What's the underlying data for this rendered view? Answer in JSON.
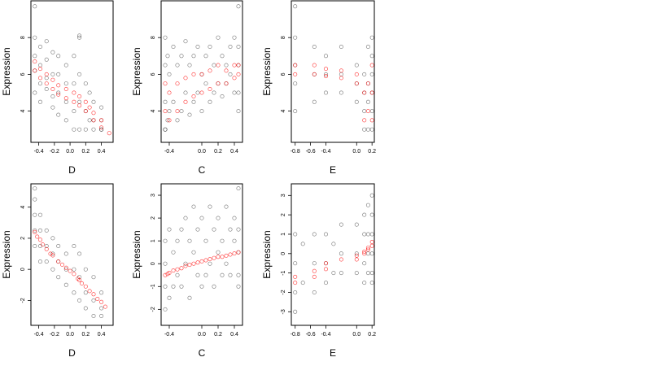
{
  "chart_data": [
    {
      "type": "scatter",
      "panel": "top-left",
      "xlabel": "D",
      "ylabel": "Expression",
      "xlim": [
        -0.5,
        0.55
      ],
      "ylim": [
        2.3,
        10
      ],
      "xticks": [
        -0.4,
        -0.2,
        0.0,
        0.2,
        0.4
      ],
      "xtick_labels": [
        "-0.4",
        "-0.2",
        "0.0",
        "0.2",
        "0.4"
      ],
      "yticks": [
        4,
        6,
        8
      ],
      "ytick_labels": [
        "4",
        "6",
        "8"
      ],
      "series": [
        {
          "role": "observed",
          "color": "#000000",
          "x": [
            -0.45,
            -0.45,
            -0.45,
            -0.45,
            -0.38,
            -0.38,
            -0.38,
            -0.38,
            -0.3,
            -0.3,
            -0.3,
            -0.3,
            -0.22,
            -0.22,
            -0.22,
            -0.22,
            -0.15,
            -0.15,
            -0.15,
            -0.15,
            -0.05,
            -0.05,
            -0.05,
            -0.05,
            0.05,
            0.05,
            0.05,
            0.05,
            0.12,
            0.12,
            0.12,
            0.12,
            0.2,
            0.2,
            0.2,
            0.25,
            0.25,
            0.3,
            0.3,
            0.3,
            0.4,
            0.4,
            0.4,
            0.4,
            -0.45,
            0.12
          ],
          "y": [
            8.0,
            7.0,
            6.2,
            5.0,
            7.5,
            6.5,
            5.5,
            4.5,
            7.8,
            6.8,
            5.8,
            5.2,
            7.2,
            6.0,
            4.8,
            4.2,
            7.0,
            6.0,
            5.0,
            3.8,
            6.5,
            5.5,
            4.5,
            3.5,
            7.0,
            5.5,
            4.0,
            3.0,
            8.0,
            6.0,
            4.5,
            3.0,
            5.5,
            4.0,
            3.0,
            5.0,
            3.5,
            4.5,
            3.5,
            3.0,
            4.2,
            3.5,
            3.0,
            3.0,
            9.7,
            8.1
          ]
        },
        {
          "role": "fitted",
          "color": "#ff0000",
          "x": [
            -0.45,
            -0.45,
            -0.38,
            -0.38,
            -0.3,
            -0.3,
            -0.22,
            -0.22,
            -0.15,
            -0.15,
            -0.05,
            -0.05,
            0.05,
            0.05,
            0.12,
            0.12,
            0.2,
            0.2,
            0.25,
            0.3,
            0.3,
            0.4,
            0.4,
            0.5
          ],
          "y": [
            6.7,
            6.2,
            6.3,
            5.8,
            6.0,
            5.5,
            5.7,
            5.2,
            5.4,
            4.9,
            5.2,
            4.7,
            5.0,
            4.5,
            4.8,
            4.3,
            4.5,
            4.0,
            4.2,
            3.9,
            3.5,
            3.5,
            3.1,
            2.8
          ]
        }
      ]
    },
    {
      "type": "scatter",
      "panel": "top-middle",
      "xlabel": "C",
      "ylabel": "Expression",
      "xlim": [
        -0.5,
        0.5
      ],
      "ylim": [
        2.3,
        10
      ],
      "xticks": [
        -0.4,
        0.0,
        0.2,
        0.4
      ],
      "xtick_labels": [
        "-0.4",
        "0.0",
        "0.2",
        "0.4"
      ],
      "yticks": [
        4,
        6,
        8
      ],
      "ytick_labels": [
        "4",
        "6",
        "8"
      ],
      "series": [
        {
          "role": "observed",
          "color": "#000000",
          "x": [
            -0.45,
            -0.45,
            -0.45,
            -0.45,
            -0.42,
            -0.42,
            -0.4,
            -0.4,
            -0.35,
            -0.35,
            -0.3,
            -0.3,
            -0.25,
            -0.25,
            -0.2,
            -0.2,
            -0.15,
            -0.15,
            -0.1,
            -0.1,
            -0.05,
            -0.05,
            0.0,
            0.0,
            0.05,
            0.05,
            0.1,
            0.1,
            0.15,
            0.15,
            0.2,
            0.2,
            0.25,
            0.25,
            0.3,
            0.3,
            0.35,
            0.35,
            0.4,
            0.4,
            0.45,
            0.45,
            0.45,
            0.45,
            -0.45,
            0.45
          ],
          "y": [
            8.0,
            6.5,
            4.5,
            3.0,
            7.0,
            3.5,
            6.0,
            4.0,
            7.5,
            4.5,
            6.5,
            3.5,
            7.0,
            4.0,
            7.8,
            5.0,
            6.5,
            3.8,
            7.0,
            4.5,
            7.5,
            5.0,
            6.0,
            4.0,
            7.0,
            5.5,
            7.5,
            4.5,
            6.5,
            5.0,
            8.0,
            5.5,
            7.0,
            4.8,
            6.5,
            5.5,
            7.5,
            6.0,
            8.0,
            5.0,
            7.5,
            6.5,
            5.0,
            4.0,
            3.0,
            9.7
          ]
        },
        {
          "role": "fitted",
          "color": "#ff0000",
          "x": [
            -0.45,
            -0.45,
            -0.4,
            -0.4,
            -0.3,
            -0.3,
            -0.2,
            -0.2,
            -0.1,
            -0.1,
            0.0,
            0.0,
            0.1,
            0.1,
            0.2,
            0.2,
            0.3,
            0.3,
            0.4,
            0.4,
            0.45,
            0.45
          ],
          "y": [
            5.5,
            4.0,
            5.0,
            3.5,
            5.5,
            4.0,
            5.8,
            4.5,
            6.0,
            4.8,
            6.0,
            5.0,
            6.2,
            5.2,
            6.5,
            5.5,
            6.2,
            5.5,
            6.5,
            5.8,
            6.5,
            6.0
          ]
        }
      ]
    },
    {
      "type": "scatter",
      "panel": "top-right",
      "xlabel": "E",
      "ylabel": "Expression",
      "xlim": [
        -0.85,
        0.23
      ],
      "ylim": [
        2.3,
        10
      ],
      "xticks": [
        -0.8,
        -0.6,
        -0.4,
        0.0,
        0.2
      ],
      "xtick_labels": [
        "-0.8",
        "-0.6",
        "-0.4",
        "0.0",
        "0.2"
      ],
      "yticks": [
        4,
        6,
        8
      ],
      "ytick_labels": [
        "4",
        "6",
        "8"
      ],
      "series": [
        {
          "role": "observed",
          "color": "#000000",
          "x": [
            -0.8,
            -0.8,
            -0.8,
            -0.8,
            -0.55,
            -0.55,
            -0.55,
            -0.4,
            -0.4,
            -0.4,
            -0.2,
            -0.2,
            -0.2,
            0.0,
            0.0,
            0.0,
            0.1,
            0.1,
            0.1,
            0.1,
            0.15,
            0.15,
            0.15,
            0.15,
            0.2,
            0.2,
            0.2,
            0.2,
            0.2,
            0.2,
            -0.8
          ],
          "y": [
            8.0,
            6.5,
            5.5,
            4.0,
            7.5,
            6.0,
            4.5,
            7.0,
            6.0,
            5.0,
            7.5,
            6.0,
            5.0,
            6.5,
            5.5,
            4.5,
            6.0,
            5.0,
            4.0,
            3.0,
            7.5,
            5.5,
            4.5,
            3.0,
            8.0,
            7.0,
            6.0,
            5.0,
            4.0,
            3.0,
            9.7
          ]
        },
        {
          "role": "fitted",
          "color": "#ff0000",
          "x": [
            -0.8,
            -0.8,
            -0.55,
            -0.55,
            -0.4,
            -0.4,
            -0.2,
            -0.2,
            0.0,
            0.0,
            0.1,
            0.1,
            0.15,
            0.15,
            0.2,
            0.2,
            0.2
          ],
          "y": [
            6.5,
            6.0,
            6.5,
            6.0,
            6.3,
            5.9,
            6.2,
            5.8,
            6.0,
            5.5,
            5.0,
            3.5,
            5.5,
            4.0,
            6.5,
            5.0,
            3.5
          ]
        }
      ]
    },
    {
      "type": "scatter",
      "panel": "bottom-left",
      "xlabel": "D",
      "ylabel": "Expression",
      "xlim": [
        -0.5,
        0.55
      ],
      "ylim": [
        -3.6,
        5.5
      ],
      "xticks": [
        -0.4,
        -0.2,
        0.0,
        0.2,
        0.4
      ],
      "xtick_labels": [
        "-0.4",
        "-0.2",
        "0.0",
        "0.2",
        "0.4"
      ],
      "yticks": [
        -2,
        0,
        2,
        4
      ],
      "ytick_labels": [
        "-2",
        "0",
        "2",
        "4"
      ],
      "series": [
        {
          "role": "observed",
          "color": "#000000",
          "x": [
            -0.45,
            -0.45,
            -0.45,
            -0.45,
            -0.38,
            -0.38,
            -0.38,
            -0.38,
            -0.3,
            -0.3,
            -0.3,
            -0.22,
            -0.22,
            -0.22,
            -0.15,
            -0.15,
            -0.15,
            -0.05,
            -0.05,
            -0.05,
            0.05,
            0.05,
            0.05,
            0.12,
            0.12,
            0.12,
            0.2,
            0.2,
            0.2,
            0.3,
            0.3,
            0.3,
            0.4,
            0.4,
            0.4,
            -0.45
          ],
          "y": [
            4.5,
            3.5,
            2.5,
            1.5,
            3.5,
            2.5,
            1.5,
            0.5,
            2.5,
            1.5,
            0.5,
            2.0,
            1.0,
            0.0,
            1.5,
            0.5,
            -0.5,
            1.0,
            0.0,
            -1.0,
            1.5,
            0.0,
            -1.5,
            1.0,
            -0.5,
            -2.0,
            0.0,
            -1.5,
            -2.5,
            -0.5,
            -2.0,
            -3.0,
            -1.5,
            -2.5,
            -3.0,
            5.2
          ]
        },
        {
          "role": "fitted",
          "color": "#ff0000",
          "x": [
            -0.45,
            -0.42,
            -0.38,
            -0.35,
            -0.3,
            -0.25,
            -0.22,
            -0.15,
            -0.1,
            -0.05,
            0.0,
            0.05,
            0.1,
            0.12,
            0.15,
            0.2,
            0.25,
            0.3,
            0.35,
            0.4,
            0.45
          ],
          "y": [
            2.4,
            2.1,
            1.9,
            1.6,
            1.3,
            1.0,
            0.9,
            0.5,
            0.3,
            0.1,
            -0.1,
            -0.3,
            -0.6,
            -0.7,
            -0.9,
            -1.1,
            -1.4,
            -1.6,
            -1.9,
            -2.1,
            -2.4
          ]
        }
      ]
    },
    {
      "type": "scatter",
      "panel": "bottom-middle",
      "xlabel": "C",
      "ylabel": "Expression",
      "xlim": [
        -0.5,
        0.5
      ],
      "ylim": [
        -2.7,
        3.5
      ],
      "xticks": [
        -0.4,
        0.0,
        0.2,
        0.4
      ],
      "xtick_labels": [
        "-0.4",
        "0.0",
        "0.2",
        "0.4"
      ],
      "yticks": [
        -2,
        -1,
        0,
        1,
        2,
        3
      ],
      "ytick_labels": [
        "-2",
        "-1",
        "0",
        "1",
        "2",
        "3"
      ],
      "series": [
        {
          "role": "observed",
          "color": "#000000",
          "x": [
            -0.45,
            -0.45,
            -0.45,
            -0.45,
            -0.4,
            -0.4,
            -0.35,
            -0.35,
            -0.3,
            -0.3,
            -0.25,
            -0.25,
            -0.2,
            -0.2,
            -0.15,
            -0.15,
            -0.1,
            -0.1,
            -0.05,
            -0.05,
            0.0,
            0.0,
            0.05,
            0.05,
            0.1,
            0.1,
            0.15,
            0.15,
            0.2,
            0.2,
            0.25,
            0.25,
            0.3,
            0.3,
            0.35,
            0.35,
            0.4,
            0.4,
            0.45,
            0.45,
            0.45,
            0.45,
            0.45
          ],
          "y": [
            1.0,
            0.0,
            -1.0,
            -2.0,
            1.5,
            -1.5,
            0.5,
            -1.0,
            1.0,
            -0.5,
            1.5,
            -1.0,
            2.0,
            0.0,
            1.0,
            -1.5,
            2.5,
            0.5,
            1.5,
            -0.5,
            2.0,
            -1.0,
            1.0,
            -0.5,
            2.5,
            0.0,
            1.5,
            -1.0,
            2.0,
            0.5,
            1.0,
            -0.5,
            2.5,
            0.0,
            1.5,
            -0.5,
            2.0,
            1.0,
            1.5,
            0.5,
            -0.5,
            -1.0,
            3.3
          ]
        },
        {
          "role": "fitted",
          "color": "#ff0000",
          "x": [
            -0.45,
            -0.42,
            -0.4,
            -0.35,
            -0.3,
            -0.25,
            -0.2,
            -0.15,
            -0.1,
            -0.05,
            0.0,
            0.05,
            0.1,
            0.15,
            0.2,
            0.25,
            0.3,
            0.35,
            0.4,
            0.45
          ],
          "y": [
            -0.5,
            -0.45,
            -0.4,
            -0.3,
            -0.25,
            -0.2,
            -0.1,
            -0.05,
            0.0,
            0.05,
            0.1,
            0.15,
            0.2,
            0.25,
            0.3,
            0.3,
            0.35,
            0.4,
            0.45,
            0.5
          ]
        }
      ]
    },
    {
      "type": "scatter",
      "panel": "bottom-right",
      "xlabel": "E",
      "ylabel": "Expression",
      "xlim": [
        -0.85,
        0.23
      ],
      "ylim": [
        -3.7,
        3.6
      ],
      "xticks": [
        -0.8,
        -0.6,
        -0.4,
        0.0,
        0.2
      ],
      "xtick_labels": [
        "-0.8",
        "-0.6",
        "-0.4",
        "0.0",
        "0.2"
      ],
      "yticks": [
        -3,
        -2,
        -1,
        0,
        1,
        2,
        3
      ],
      "ytick_labels": [
        "-3",
        "-2",
        "-1",
        "0",
        "1",
        "2",
        "3"
      ],
      "series": [
        {
          "role": "observed",
          "color": "#000000",
          "x": [
            -0.8,
            -0.8,
            -0.8,
            -0.8,
            -0.7,
            -0.7,
            -0.55,
            -0.55,
            -0.55,
            -0.4,
            -0.4,
            -0.4,
            -0.3,
            -0.3,
            -0.2,
            -0.2,
            -0.2,
            0.0,
            0.0,
            0.0,
            0.1,
            0.1,
            0.1,
            0.1,
            0.15,
            0.15,
            0.15,
            0.15,
            0.2,
            0.2,
            0.2,
            0.2,
            0.2,
            0.2
          ],
          "y": [
            1.0,
            -0.5,
            -2.0,
            -3.0,
            0.5,
            -1.5,
            1.0,
            -0.5,
            -2.0,
            1.0,
            -0.5,
            -1.5,
            0.5,
            -1.0,
            1.5,
            0.0,
            -1.0,
            1.5,
            0.0,
            -1.0,
            2.0,
            1.0,
            -0.5,
            -1.5,
            2.5,
            1.0,
            0.0,
            -1.0,
            3.0,
            2.0,
            1.0,
            0.0,
            -1.0,
            -1.5
          ]
        },
        {
          "role": "fitted",
          "color": "#ff0000",
          "x": [
            -0.8,
            -0.8,
            -0.55,
            -0.55,
            -0.4,
            -0.4,
            -0.2,
            0.0,
            0.0,
            0.1,
            0.1,
            0.15,
            0.15,
            0.2,
            0.2
          ],
          "y": [
            -1.2,
            -1.5,
            -0.9,
            -1.2,
            -0.5,
            -0.8,
            -0.3,
            -0.1,
            -0.3,
            0.1,
            0.0,
            0.2,
            0.3,
            0.4,
            0.6
          ]
        }
      ]
    }
  ]
}
